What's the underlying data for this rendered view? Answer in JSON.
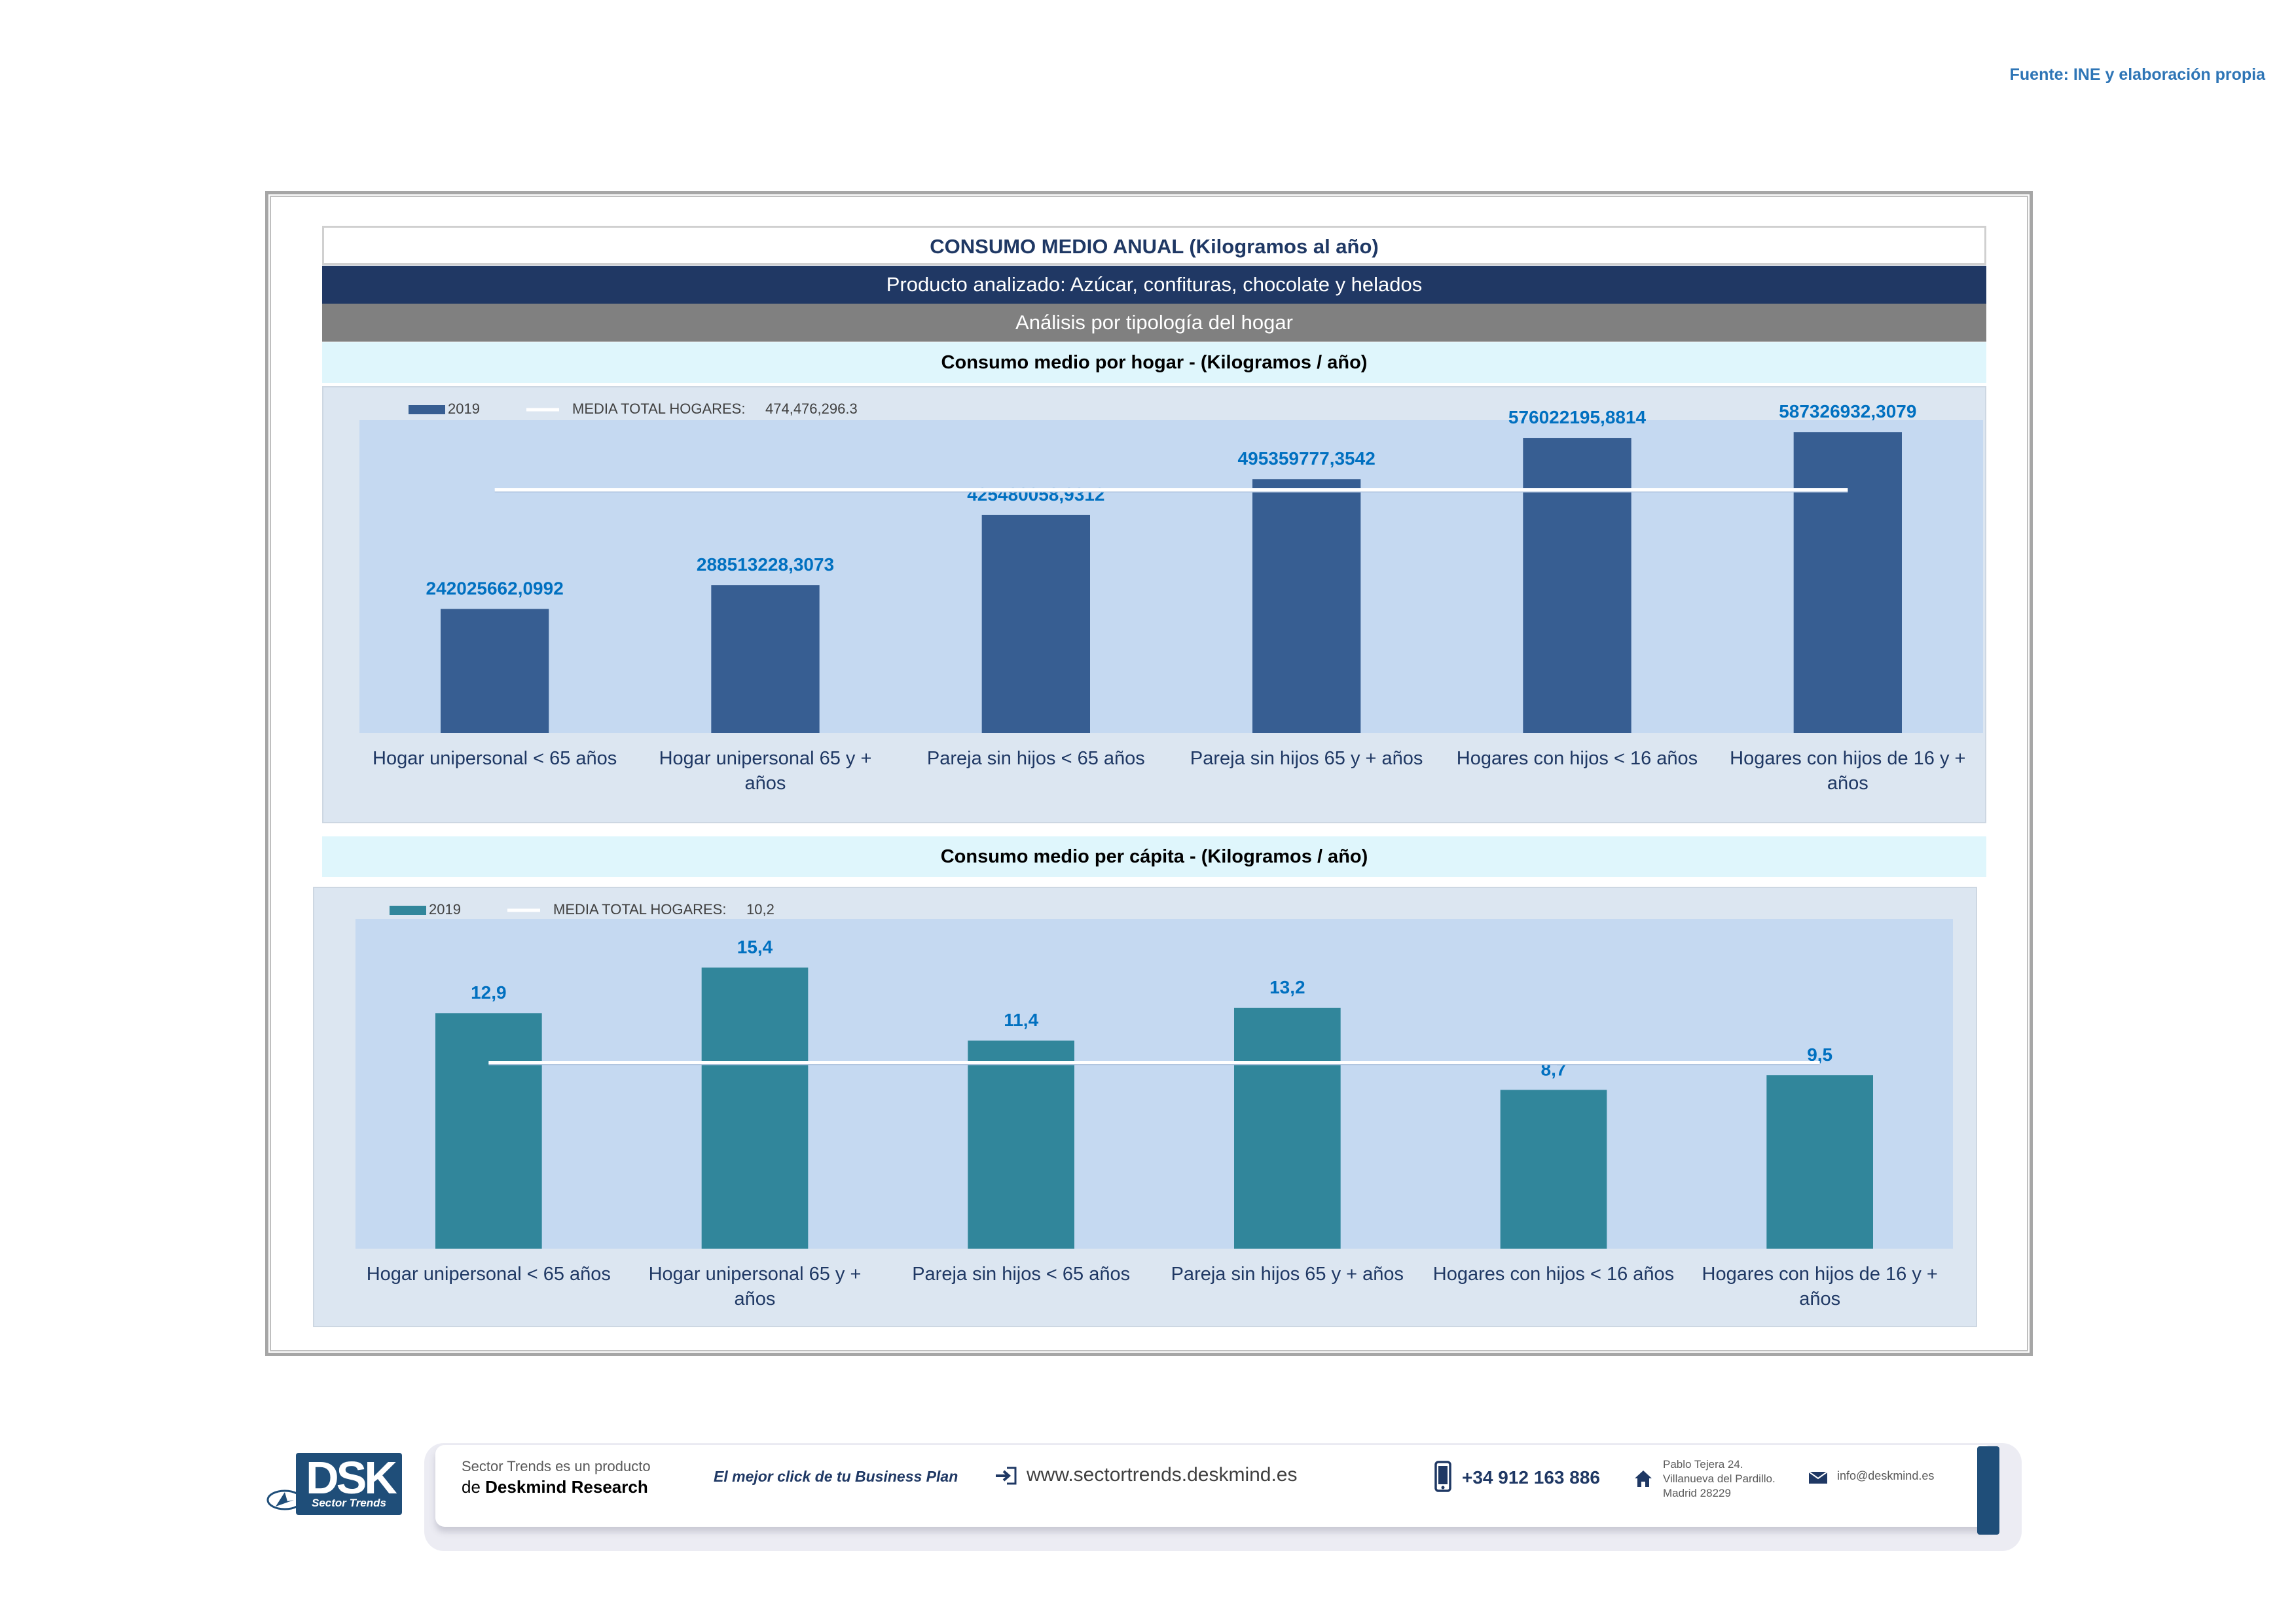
{
  "source": "Fuente: INE y elaboración propia",
  "header": {
    "title": "CONSUMO MEDIO ANUAL (Kilogramos al año)",
    "product": "Producto analizado: Azúcar, confituras, chocolate y helados",
    "analysis": "Análisis por tipología del hogar"
  },
  "colors": {
    "bar1": "#375e92",
    "bar2": "#31869b",
    "label": "#0070c0",
    "plot_bg": "#c5d9f1",
    "panel_bg": "#dce6f1"
  },
  "chart_data": [
    {
      "type": "bar",
      "title": "Consumo medio por hogar -  (Kilogramos / año)",
      "categories": [
        [
          "Hogar unipersonal < 65 años"
        ],
        [
          "Hogar unipersonal  65 y +",
          "años"
        ],
        [
          "Pareja sin hijos < 65 años"
        ],
        [
          "Pareja sin hijos 65 y + años"
        ],
        [
          "Hogares con hijos < 16 años"
        ],
        [
          "Hogares con hijos de 16 y +",
          "años"
        ]
      ],
      "series": [
        {
          "name": "2019",
          "values": [
            242025662.0992,
            288513228.3073,
            425480058.9312,
            495359777.3542,
            576022195.8814,
            587326932.3079
          ],
          "labels": [
            "242025662,0992",
            "288513228,3073",
            "425480058,9312",
            "495359777,3542",
            "576022195,8814",
            "587326932,3079"
          ]
        }
      ],
      "reference_line": {
        "name": "MEDIA TOTAL  HOGARES:",
        "value": 474476296.3,
        "label": "474,476,296.3"
      },
      "ylim": [
        0,
        700000000
      ],
      "legend": "top-left",
      "grid": false
    },
    {
      "type": "bar",
      "title": "Consumo medio per cápita -  (Kilogramos / año)",
      "categories": [
        [
          "Hogar unipersonal < 65 años"
        ],
        [
          "Hogar unipersonal  65 y +",
          "años"
        ],
        [
          "Pareja sin hijos < 65 años"
        ],
        [
          "Pareja sin hijos 65 y + años"
        ],
        [
          "Hogares con hijos < 16 años"
        ],
        [
          "Hogares con hijos de 16 y +",
          "años"
        ]
      ],
      "series": [
        {
          "name": "2019",
          "values": [
            12.9,
            15.4,
            11.4,
            13.2,
            8.7,
            9.5
          ],
          "labels": [
            "12,9",
            "15,4",
            "11,4",
            "13,2",
            "8,7",
            "9,5"
          ]
        }
      ],
      "reference_line": {
        "name": "MEDIA TOTAL  HOGARES:",
        "value": 10.2,
        "label": "10,2"
      },
      "ylim": [
        0,
        18
      ],
      "legend": "top-left",
      "grid": false
    }
  ],
  "footer": {
    "logo_text": "DSK",
    "logo_sub": "Sector Trends",
    "product_line1": "Sector Trends es un producto",
    "product_line2_prefix": "de",
    "product_line2_brand": "Deskmind Research",
    "tagline": "El mejor click de tu Business Plan",
    "web": "www.sectortrends.deskmind.es",
    "phone": "+34 912 163 886",
    "address_line1": "Pablo Tejera 24.",
    "address_line2": "Villanueva del Pardillo.",
    "address_line3": "Madrid 28229",
    "email": "info@deskmind.es",
    "icons": [
      "login-arrow-icon",
      "phone-icon",
      "home-icon",
      "mail-icon"
    ]
  }
}
